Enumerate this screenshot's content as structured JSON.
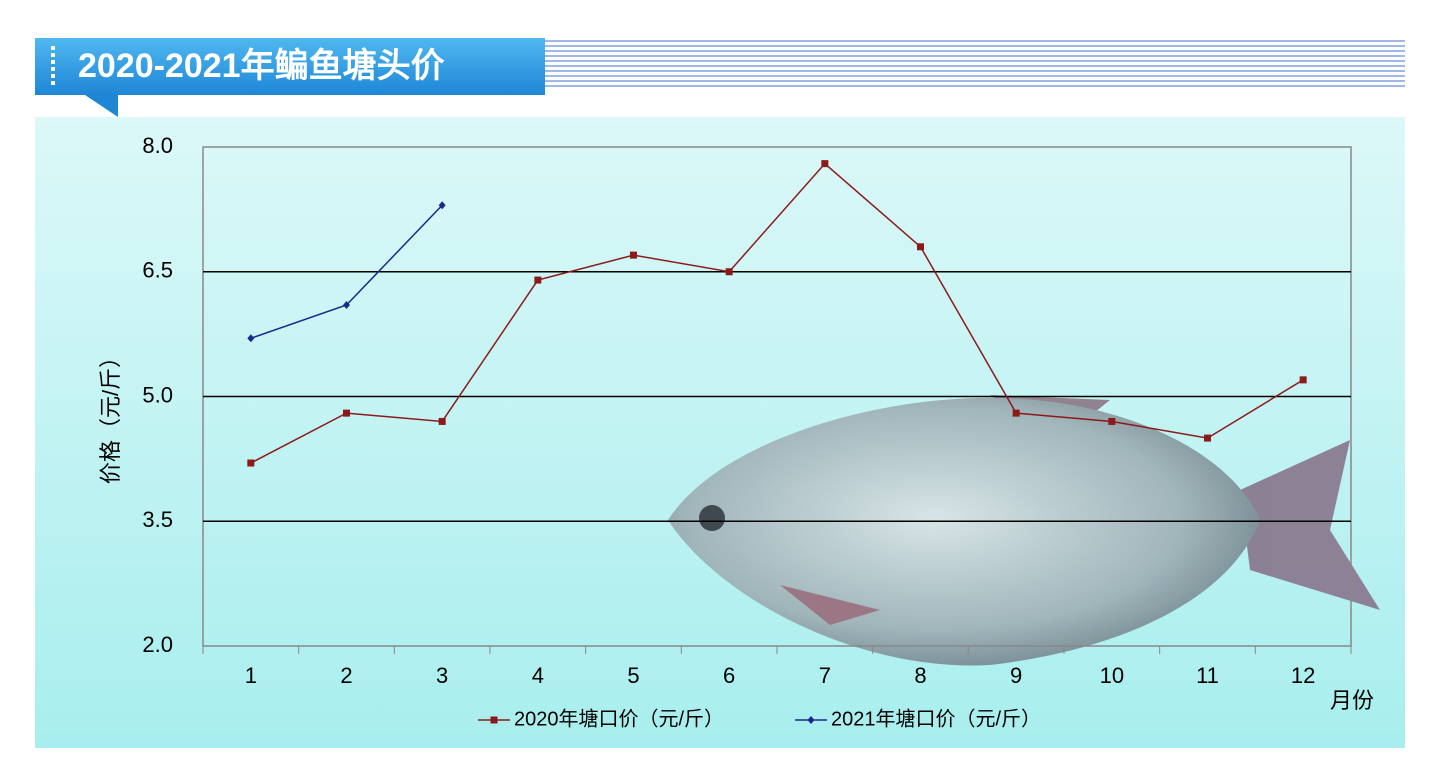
{
  "chart_data": {
    "type": "line",
    "title": "2020-2021年鳊鱼塘头价",
    "y_label": "价格（元/斤）",
    "x_label": "月份",
    "categories": [
      "1",
      "2",
      "3",
      "4",
      "5",
      "6",
      "7",
      "8",
      "9",
      "10",
      "11",
      "12"
    ],
    "series": [
      {
        "name": "2020年塘口价（元/斤）",
        "color": "#8b1a1a",
        "marker": "square",
        "values": [
          4.2,
          4.8,
          4.7,
          6.4,
          6.7,
          6.5,
          7.8,
          6.8,
          4.8,
          4.7,
          4.5,
          5.2
        ]
      },
      {
        "name": "2021年塘口价（元/斤）",
        "color": "#1a2a8c",
        "marker": "diamond",
        "values": [
          5.7,
          6.1,
          7.3,
          null,
          null,
          null,
          null,
          null,
          null,
          null,
          null,
          null
        ]
      }
    ],
    "ylim": [
      2.0,
      8.0
    ],
    "yticks": [
      {
        "value": 2.0,
        "label": "2.0"
      },
      {
        "value": 3.5,
        "label": "3.5"
      },
      {
        "value": 5.0,
        "label": "5.0"
      },
      {
        "value": 6.5,
        "label": "6.5"
      },
      {
        "value": 8.0,
        "label": "8.0"
      }
    ],
    "grid": true,
    "legend": "bottom"
  }
}
